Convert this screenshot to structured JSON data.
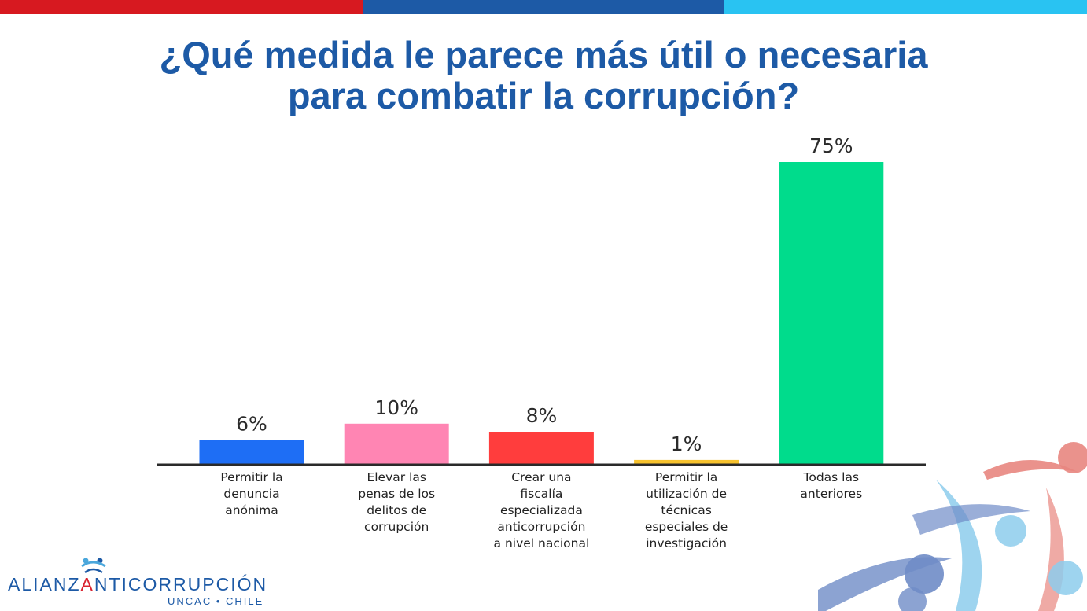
{
  "header": {
    "title_line1": "¿Qué medida le parece más útil o necesaria",
    "title_line2": "para combatir la corrupción?",
    "bar_colors": [
      "#d71920",
      "#1d5aa6",
      "#29c3f2"
    ]
  },
  "logo": {
    "part1": "ALIANZ",
    "part2": "A",
    "part3": "NTICORRUPCIÓN",
    "subtitle": "UNCAC • CHILE"
  },
  "chart_data": {
    "type": "bar",
    "categories": [
      [
        "Permitir la",
        "denuncia",
        "anónima"
      ],
      [
        "Elevar las",
        "penas de los",
        "delitos de",
        "corrupción"
      ],
      [
        "Crear una",
        "fiscalía",
        "especializada",
        "anticorrupción",
        "a nivel nacional"
      ],
      [
        "Permitir la",
        "utilización de",
        "técnicas",
        "especiales de",
        "investigación"
      ],
      [
        "Todas las",
        "anteriores"
      ]
    ],
    "values": [
      6,
      10,
      8,
      1,
      75
    ],
    "value_labels": [
      "6%",
      "10%",
      "8%",
      "1%",
      "75%"
    ],
    "colors": [
      "#1e6ef5",
      "#ff85b3",
      "#ff3d3d",
      "#f7c22e",
      "#00dc8c"
    ],
    "ylim": [
      0,
      75
    ],
    "grid": false,
    "legend": "none"
  }
}
